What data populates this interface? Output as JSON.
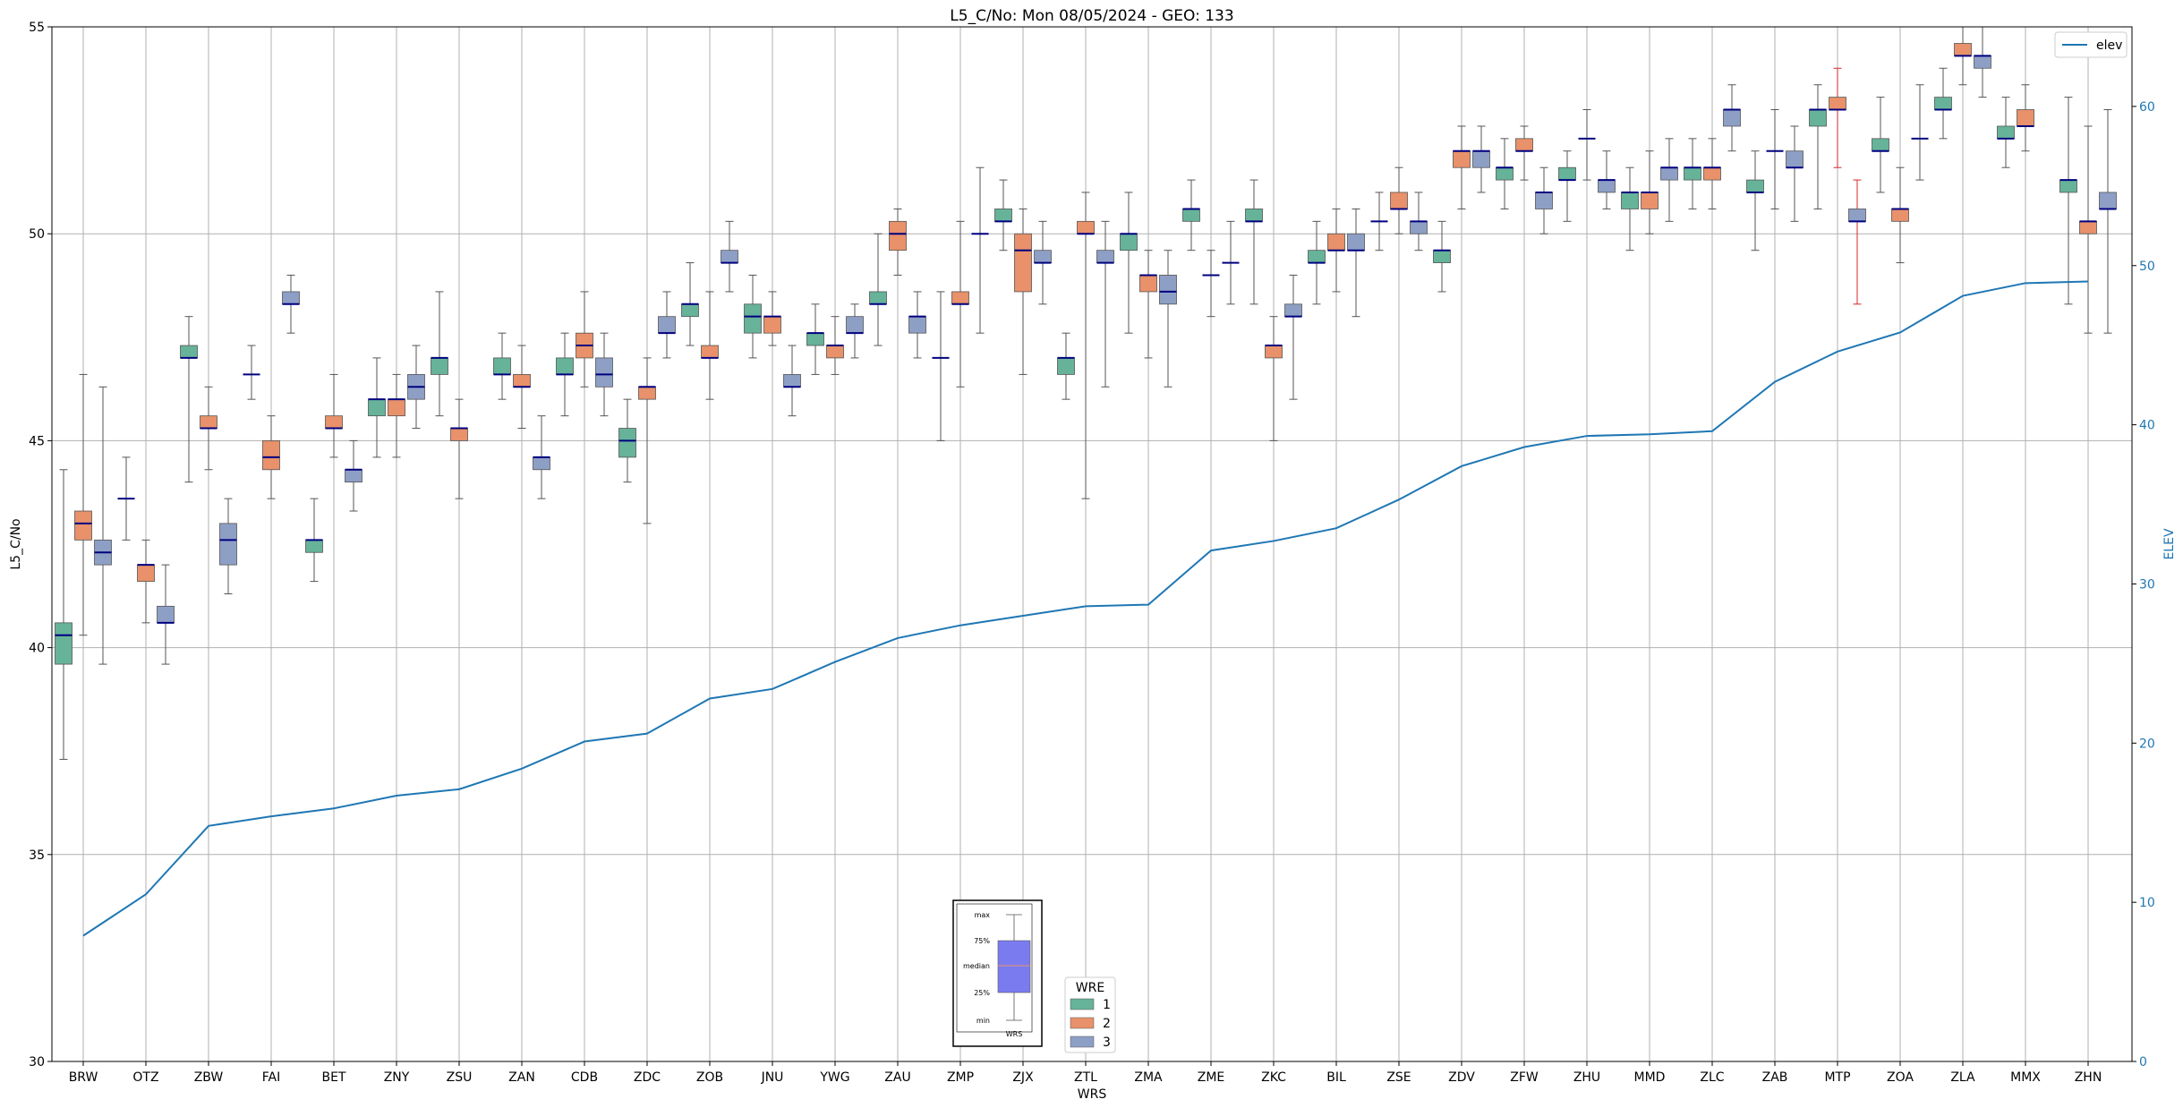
{
  "chart_data": {
    "type": "box",
    "title": "L5_C/No: Mon 08/05/2024 - GEO: 133",
    "xlabel": "WRS",
    "ylabel": "L5_C/No",
    "y2label": "ELEV",
    "ylim": [
      30,
      55
    ],
    "y2lim": [
      0,
      65
    ],
    "yticks": [
      30,
      35,
      40,
      45,
      50,
      55
    ],
    "y2ticks": [
      0,
      10,
      20,
      30,
      40,
      50,
      60
    ],
    "grid": true,
    "categories": [
      "BRW",
      "OTZ",
      "ZBW",
      "FAI",
      "BET",
      "ZNY",
      "ZSU",
      "ZAN",
      "CDB",
      "ZDC",
      "ZOB",
      "JNU",
      "YWG",
      "ZAU",
      "ZMP",
      "ZJX",
      "ZTL",
      "ZMA",
      "ZME",
      "ZKC",
      "BIL",
      "ZSE",
      "ZDV",
      "ZFW",
      "ZHU",
      "MMD",
      "ZLC",
      "ZAB",
      "MTP",
      "ZOA",
      "ZLA",
      "MMX",
      "ZHN"
    ],
    "wre_legend": {
      "title": "WRE",
      "placement": "lower-center",
      "entries": [
        {
          "name": "1",
          "color": "#66b39a"
        },
        {
          "name": "2",
          "color": "#e8916a"
        },
        {
          "name": "3",
          "color": "#8e9fc6"
        }
      ]
    },
    "line_legend": {
      "placement": "top-right",
      "entries": [
        {
          "name": "elev",
          "color": "#1f77b4"
        }
      ]
    },
    "inset": {
      "labels": [
        "max",
        "75%",
        "median",
        "25%",
        "min"
      ],
      "xlabel": "WRS",
      "box_color": "#7b7bf0",
      "median_color": "#e8916a"
    },
    "elev_series": {
      "name": "elev",
      "color": "#1f77b4",
      "values": [
        7.9,
        10.5,
        14.8,
        15.4,
        15.9,
        16.7,
        17.1,
        18.4,
        20.1,
        20.6,
        22.8,
        23.4,
        25.1,
        26.6,
        27.4,
        28.0,
        28.6,
        28.7,
        32.1,
        32.7,
        33.5,
        35.3,
        37.4,
        38.6,
        39.3,
        39.4,
        39.6,
        42.7,
        44.6,
        45.8,
        48.1,
        48.9,
        49.0
      ]
    },
    "box_series": [
      {
        "wre": 1,
        "cat": "BRW",
        "min": 37.3,
        "q1": 39.6,
        "med": 40.3,
        "q3": 40.6,
        "max": 44.3
      },
      {
        "wre": 2,
        "cat": "BRW",
        "min": 40.3,
        "q1": 42.6,
        "med": 43.0,
        "q3": 43.3,
        "max": 46.6
      },
      {
        "wre": 3,
        "cat": "BRW",
        "min": 39.6,
        "q1": 42.0,
        "med": 42.3,
        "q3": 42.6,
        "max": 46.3
      },
      {
        "wre": 1,
        "cat": "OTZ",
        "min": 42.6,
        "q1": 43.6,
        "med": 43.6,
        "q3": 43.6,
        "max": 44.6,
        "color": "#000080"
      },
      {
        "wre": 2,
        "cat": "OTZ",
        "min": 40.6,
        "q1": 41.6,
        "med": 42.0,
        "q3": 42.0,
        "max": 42.6
      },
      {
        "wre": 3,
        "cat": "OTZ",
        "min": 39.6,
        "q1": 40.6,
        "med": 40.6,
        "q3": 41.0,
        "max": 42.0
      },
      {
        "wre": 1,
        "cat": "ZBW",
        "min": 44.0,
        "q1": 47.0,
        "med": 47.0,
        "q3": 47.3,
        "max": 48.0
      },
      {
        "wre": 2,
        "cat": "ZBW",
        "min": 44.3,
        "q1": 45.3,
        "med": 45.3,
        "q3": 45.6,
        "max": 46.3
      },
      {
        "wre": 3,
        "cat": "ZBW",
        "min": 41.3,
        "q1": 42.0,
        "med": 42.6,
        "q3": 43.0,
        "max": 43.6
      },
      {
        "wre": 1,
        "cat": "FAI",
        "min": 46.0,
        "q1": 46.6,
        "med": 46.6,
        "q3": 46.6,
        "max": 47.3,
        "color": "#000080"
      },
      {
        "wre": 2,
        "cat": "FAI",
        "min": 43.6,
        "q1": 44.3,
        "med": 44.6,
        "q3": 45.0,
        "max": 45.6
      },
      {
        "wre": 3,
        "cat": "FAI",
        "min": 47.6,
        "q1": 48.3,
        "med": 48.3,
        "q3": 48.6,
        "max": 49.0
      },
      {
        "wre": 1,
        "cat": "BET",
        "min": 41.6,
        "q1": 42.3,
        "med": 42.6,
        "q3": 42.6,
        "max": 43.6
      },
      {
        "wre": 2,
        "cat": "BET",
        "min": 44.6,
        "q1": 45.3,
        "med": 45.3,
        "q3": 45.6,
        "max": 46.6
      },
      {
        "wre": 3,
        "cat": "BET",
        "min": 43.3,
        "q1": 44.0,
        "med": 44.3,
        "q3": 44.3,
        "max": 45.0
      },
      {
        "wre": 1,
        "cat": "ZNY",
        "min": 44.6,
        "q1": 45.6,
        "med": 46.0,
        "q3": 46.0,
        "max": 47.0
      },
      {
        "wre": 2,
        "cat": "ZNY",
        "min": 44.6,
        "q1": 45.6,
        "med": 46.0,
        "q3": 46.0,
        "max": 46.6
      },
      {
        "wre": 3,
        "cat": "ZNY",
        "min": 45.3,
        "q1": 46.0,
        "med": 46.3,
        "q3": 46.6,
        "max": 47.3
      },
      {
        "wre": 1,
        "cat": "ZSU",
        "min": 45.6,
        "q1": 46.6,
        "med": 47.0,
        "q3": 47.0,
        "max": 48.6
      },
      {
        "wre": 2,
        "cat": "ZSU",
        "min": 43.6,
        "q1": 45.0,
        "med": 45.3,
        "q3": 45.3,
        "max": 46.0
      },
      {
        "wre": 3,
        "cat": "ZSU",
        "min": 46.6,
        "q1": 46.6,
        "med": 46.6,
        "q3": 46.6,
        "max": 46.6,
        "hidden": true
      },
      {
        "wre": 1,
        "cat": "ZAN",
        "min": 46.0,
        "q1": 46.6,
        "med": 46.6,
        "q3": 47.0,
        "max": 47.6
      },
      {
        "wre": 2,
        "cat": "ZAN",
        "min": 45.3,
        "q1": 46.3,
        "med": 46.3,
        "q3": 46.6,
        "max": 47.3
      },
      {
        "wre": 3,
        "cat": "ZAN",
        "min": 43.6,
        "q1": 44.3,
        "med": 44.6,
        "q3": 44.6,
        "max": 45.6
      },
      {
        "wre": 1,
        "cat": "CDB",
        "min": 45.6,
        "q1": 46.6,
        "med": 46.6,
        "q3": 47.0,
        "max": 47.6
      },
      {
        "wre": 2,
        "cat": "CDB",
        "min": 46.3,
        "q1": 47.0,
        "med": 47.3,
        "q3": 47.6,
        "max": 48.6
      },
      {
        "wre": 3,
        "cat": "CDB",
        "min": 45.6,
        "q1": 46.3,
        "med": 46.6,
        "q3": 47.0,
        "max": 47.6
      },
      {
        "wre": 1,
        "cat": "ZDC",
        "min": 44.0,
        "q1": 44.6,
        "med": 45.0,
        "q3": 45.3,
        "max": 46.0
      },
      {
        "wre": 2,
        "cat": "ZDC",
        "min": 43.0,
        "q1": 46.0,
        "med": 46.3,
        "q3": 46.3,
        "max": 47.0
      },
      {
        "wre": 3,
        "cat": "ZDC",
        "min": 47.0,
        "q1": 47.6,
        "med": 47.6,
        "q3": 48.0,
        "max": 48.6
      },
      {
        "wre": 1,
        "cat": "ZOB",
        "min": 47.3,
        "q1": 48.0,
        "med": 48.3,
        "q3": 48.3,
        "max": 49.3
      },
      {
        "wre": 2,
        "cat": "ZOB",
        "min": 46.0,
        "q1": 47.0,
        "med": 47.0,
        "q3": 47.3,
        "max": 48.6
      },
      {
        "wre": 3,
        "cat": "ZOB",
        "min": 48.6,
        "q1": 49.3,
        "med": 49.3,
        "q3": 49.6,
        "max": 50.3
      },
      {
        "wre": 1,
        "cat": "JNU",
        "min": 47.0,
        "q1": 47.6,
        "med": 48.0,
        "q3": 48.3,
        "max": 49.0
      },
      {
        "wre": 2,
        "cat": "JNU",
        "min": 47.3,
        "q1": 47.6,
        "med": 48.0,
        "q3": 48.0,
        "max": 48.6
      },
      {
        "wre": 3,
        "cat": "JNU",
        "min": 45.6,
        "q1": 46.3,
        "med": 46.3,
        "q3": 46.6,
        "max": 47.3
      },
      {
        "wre": 1,
        "cat": "YWG",
        "min": 46.6,
        "q1": 47.3,
        "med": 47.6,
        "q3": 47.6,
        "max": 48.3
      },
      {
        "wre": 2,
        "cat": "YWG",
        "min": 46.6,
        "q1": 47.0,
        "med": 47.3,
        "q3": 47.3,
        "max": 48.0
      },
      {
        "wre": 3,
        "cat": "YWG",
        "min": 47.0,
        "q1": 47.6,
        "med": 47.6,
        "q3": 48.0,
        "max": 48.3
      },
      {
        "wre": 1,
        "cat": "ZAU",
        "min": 47.3,
        "q1": 48.3,
        "med": 48.3,
        "q3": 48.6,
        "max": 50.0
      },
      {
        "wre": 2,
        "cat": "ZAU",
        "min": 49.0,
        "q1": 49.6,
        "med": 50.0,
        "q3": 50.3,
        "max": 50.6
      },
      {
        "wre": 3,
        "cat": "ZAU",
        "min": 47.0,
        "q1": 47.6,
        "med": 48.0,
        "q3": 48.0,
        "max": 48.6
      },
      {
        "wre": 1,
        "cat": "ZMP",
        "min": 45.0,
        "q1": 47.0,
        "med": 47.0,
        "q3": 47.0,
        "max": 48.6,
        "color": "#000080"
      },
      {
        "wre": 2,
        "cat": "ZMP",
        "min": 46.3,
        "q1": 48.3,
        "med": 48.3,
        "q3": 48.6,
        "max": 50.3
      },
      {
        "wre": 3,
        "cat": "ZMP",
        "min": 47.6,
        "q1": 50.0,
        "med": 50.0,
        "q3": 50.0,
        "max": 51.6,
        "color": "#000080"
      },
      {
        "wre": 1,
        "cat": "ZJX",
        "min": 49.6,
        "q1": 50.3,
        "med": 50.3,
        "q3": 50.6,
        "max": 51.3
      },
      {
        "wre": 2,
        "cat": "ZJX",
        "min": 46.6,
        "q1": 48.6,
        "med": 49.6,
        "q3": 50.0,
        "max": 50.6
      },
      {
        "wre": 3,
        "cat": "ZJX",
        "min": 48.3,
        "q1": 49.3,
        "med": 49.3,
        "q3": 49.6,
        "max": 50.3
      },
      {
        "wre": 1,
        "cat": "ZTL",
        "min": 46.0,
        "q1": 46.6,
        "med": 47.0,
        "q3": 47.0,
        "max": 47.6
      },
      {
        "wre": 2,
        "cat": "ZTL",
        "min": 43.6,
        "q1": 50.0,
        "med": 50.0,
        "q3": 50.3,
        "max": 51.0
      },
      {
        "wre": 3,
        "cat": "ZTL",
        "min": 46.3,
        "q1": 49.3,
        "med": 49.3,
        "q3": 49.6,
        "max": 50.3
      },
      {
        "wre": 1,
        "cat": "ZMA",
        "min": 47.6,
        "q1": 49.6,
        "med": 50.0,
        "q3": 50.0,
        "max": 51.0
      },
      {
        "wre": 2,
        "cat": "ZMA",
        "min": 47.0,
        "q1": 48.6,
        "med": 49.0,
        "q3": 49.0,
        "max": 49.6
      },
      {
        "wre": 3,
        "cat": "ZMA",
        "min": 46.3,
        "q1": 48.3,
        "med": 48.6,
        "q3": 49.0,
        "max": 49.6
      },
      {
        "wre": 1,
        "cat": "ZME",
        "min": 49.6,
        "q1": 50.3,
        "med": 50.6,
        "q3": 50.6,
        "max": 51.3
      },
      {
        "wre": 2,
        "cat": "ZME",
        "min": 48.0,
        "q1": 49.0,
        "med": 49.0,
        "q3": 49.0,
        "max": 49.6,
        "color": "#000080"
      },
      {
        "wre": 3,
        "cat": "ZME",
        "min": 48.3,
        "q1": 49.3,
        "med": 49.3,
        "q3": 49.3,
        "max": 50.3,
        "color": "#000080"
      },
      {
        "wre": 1,
        "cat": "ZKC",
        "min": 48.3,
        "q1": 50.3,
        "med": 50.3,
        "q3": 50.6,
        "max": 51.3
      },
      {
        "wre": 2,
        "cat": "ZKC",
        "min": 45.0,
        "q1": 47.0,
        "med": 47.3,
        "q3": 47.3,
        "max": 48.0
      },
      {
        "wre": 3,
        "cat": "ZKC",
        "min": 46.0,
        "q1": 48.0,
        "med": 48.0,
        "q3": 48.3,
        "max": 49.0
      },
      {
        "wre": 1,
        "cat": "BIL",
        "min": 48.3,
        "q1": 49.3,
        "med": 49.3,
        "q3": 49.6,
        "max": 50.3
      },
      {
        "wre": 2,
        "cat": "BIL",
        "min": 48.6,
        "q1": 49.6,
        "med": 49.6,
        "q3": 50.0,
        "max": 50.6
      },
      {
        "wre": 3,
        "cat": "BIL",
        "min": 48.0,
        "q1": 49.6,
        "med": 49.6,
        "q3": 50.0,
        "max": 50.6
      },
      {
        "wre": 1,
        "cat": "ZSE",
        "min": 49.6,
        "q1": 50.3,
        "med": 50.3,
        "q3": 50.3,
        "max": 51.0,
        "color": "#000080"
      },
      {
        "wre": 2,
        "cat": "ZSE",
        "min": 50.0,
        "q1": 50.6,
        "med": 50.6,
        "q3": 51.0,
        "max": 51.6
      },
      {
        "wre": 3,
        "cat": "ZSE",
        "min": 49.6,
        "q1": 50.0,
        "med": 50.3,
        "q3": 50.3,
        "max": 51.0
      },
      {
        "wre": 1,
        "cat": "ZDV",
        "min": 48.6,
        "q1": 49.3,
        "med": 49.6,
        "q3": 49.6,
        "max": 50.3
      },
      {
        "wre": 2,
        "cat": "ZDV",
        "min": 50.6,
        "q1": 51.6,
        "med": 52.0,
        "q3": 52.0,
        "max": 52.6
      },
      {
        "wre": 3,
        "cat": "ZDV",
        "min": 51.0,
        "q1": 51.6,
        "med": 52.0,
        "q3": 52.0,
        "max": 52.6
      },
      {
        "wre": 1,
        "cat": "ZFW",
        "min": 50.6,
        "q1": 51.3,
        "med": 51.6,
        "q3": 51.6,
        "max": 52.3
      },
      {
        "wre": 2,
        "cat": "ZFW",
        "min": 51.3,
        "q1": 52.0,
        "med": 52.0,
        "q3": 52.3,
        "max": 52.6
      },
      {
        "wre": 3,
        "cat": "ZFW",
        "min": 50.0,
        "q1": 50.6,
        "med": 51.0,
        "q3": 51.0,
        "max": 51.6
      },
      {
        "wre": 1,
        "cat": "ZHU",
        "min": 50.3,
        "q1": 51.3,
        "med": 51.3,
        "q3": 51.6,
        "max": 52.0
      },
      {
        "wre": 2,
        "cat": "ZHU",
        "min": 51.3,
        "q1": 52.3,
        "med": 52.3,
        "q3": 52.3,
        "max": 53.0,
        "color": "#000080"
      },
      {
        "wre": 3,
        "cat": "ZHU",
        "min": 50.6,
        "q1": 51.0,
        "med": 51.3,
        "q3": 51.3,
        "max": 52.0
      },
      {
        "wre": 1,
        "cat": "MMD",
        "min": 49.6,
        "q1": 50.6,
        "med": 51.0,
        "q3": 51.0,
        "max": 51.6
      },
      {
        "wre": 2,
        "cat": "MMD",
        "min": 50.0,
        "q1": 50.6,
        "med": 51.0,
        "q3": 51.0,
        "max": 52.0
      },
      {
        "wre": 3,
        "cat": "MMD",
        "min": 50.3,
        "q1": 51.3,
        "med": 51.6,
        "q3": 51.6,
        "max": 52.3
      },
      {
        "wre": 1,
        "cat": "ZLC",
        "min": 50.6,
        "q1": 51.3,
        "med": 51.6,
        "q3": 51.6,
        "max": 52.3
      },
      {
        "wre": 2,
        "cat": "ZLC",
        "min": 50.6,
        "q1": 51.3,
        "med": 51.6,
        "q3": 51.6,
        "max": 52.3
      },
      {
        "wre": 3,
        "cat": "ZLC",
        "min": 52.0,
        "q1": 52.6,
        "med": 53.0,
        "q3": 53.0,
        "max": 53.6
      },
      {
        "wre": 1,
        "cat": "ZAB",
        "min": 49.6,
        "q1": 51.0,
        "med": 51.0,
        "q3": 51.3,
        "max": 52.0
      },
      {
        "wre": 2,
        "cat": "ZAB",
        "min": 50.6,
        "q1": 52.0,
        "med": 52.0,
        "q3": 52.0,
        "max": 53.0,
        "color": "#000080"
      },
      {
        "wre": 3,
        "cat": "ZAB",
        "min": 50.3,
        "q1": 51.6,
        "med": 51.6,
        "q3": 52.0,
        "max": 52.6
      },
      {
        "wre": 1,
        "cat": "MTP",
        "min": 50.6,
        "q1": 52.6,
        "med": 53.0,
        "q3": 53.0,
        "max": 53.6
      },
      {
        "wre": 2,
        "cat": "MTP",
        "min": 51.6,
        "q1": 53.0,
        "med": 53.0,
        "q3": 53.3,
        "max": 54.0,
        "whisker": "#d62728"
      },
      {
        "wre": 3,
        "cat": "MTP",
        "min": 48.3,
        "q1": 50.3,
        "med": 50.3,
        "q3": 50.6,
        "max": 51.3,
        "whisker": "#d62728"
      },
      {
        "wre": 1,
        "cat": "ZOA",
        "min": 51.0,
        "q1": 52.0,
        "med": 52.0,
        "q3": 52.3,
        "max": 53.3
      },
      {
        "wre": 2,
        "cat": "ZOA",
        "min": 49.3,
        "q1": 50.3,
        "med": 50.6,
        "q3": 50.6,
        "max": 51.6
      },
      {
        "wre": 3,
        "cat": "ZOA",
        "min": 51.3,
        "q1": 52.3,
        "med": 52.3,
        "q3": 52.3,
        "max": 53.6,
        "color": "#000080"
      },
      {
        "wre": 1,
        "cat": "ZLA",
        "min": 52.3,
        "q1": 53.0,
        "med": 53.0,
        "q3": 53.3,
        "max": 54.0
      },
      {
        "wre": 2,
        "cat": "ZLA",
        "min": 53.6,
        "q1": 54.3,
        "med": 54.3,
        "q3": 54.6,
        "max": 55.0
      },
      {
        "wre": 3,
        "cat": "ZLA",
        "min": 53.3,
        "q1": 54.0,
        "med": 54.3,
        "q3": 54.3,
        "max": 55.0
      },
      {
        "wre": 1,
        "cat": "MMX",
        "min": 51.6,
        "q1": 52.3,
        "med": 52.3,
        "q3": 52.6,
        "max": 53.3
      },
      {
        "wre": 2,
        "cat": "MMX",
        "min": 52.0,
        "q1": 52.6,
        "med": 52.6,
        "q3": 53.0,
        "max": 53.6
      },
      {
        "wre": 3,
        "cat": "MMX",
        "min": 52.6,
        "q1": 52.6,
        "med": 52.6,
        "q3": 52.6,
        "max": 52.6,
        "hidden": true
      },
      {
        "wre": 1,
        "cat": "ZHN",
        "min": 48.3,
        "q1": 51.0,
        "med": 51.3,
        "q3": 51.3,
        "max": 53.3
      },
      {
        "wre": 2,
        "cat": "ZHN",
        "min": 47.6,
        "q1": 50.0,
        "med": 50.3,
        "q3": 50.3,
        "max": 52.6
      },
      {
        "wre": 3,
        "cat": "ZHN",
        "min": 47.6,
        "q1": 50.6,
        "med": 50.6,
        "q3": 51.0,
        "max": 53.0
      }
    ]
  }
}
